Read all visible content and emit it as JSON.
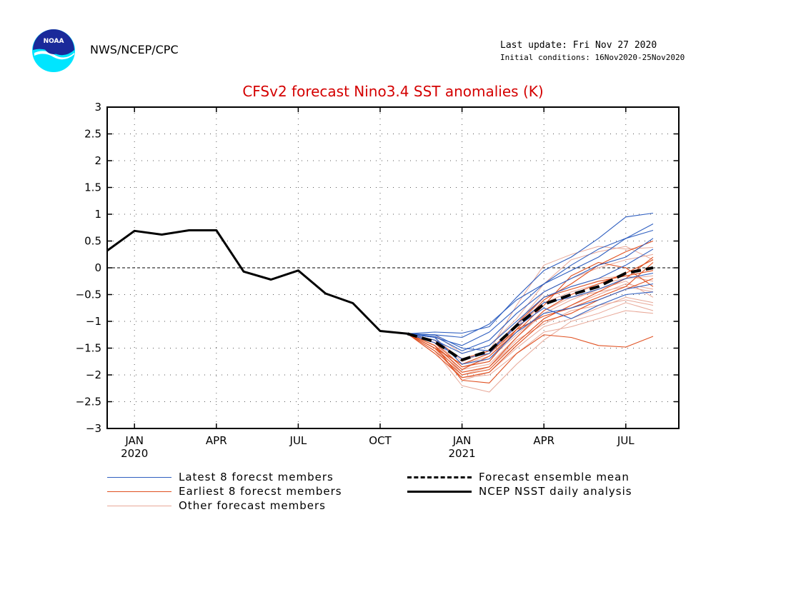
{
  "header": {
    "org": "NWS/NCEP/CPC",
    "last_update": "Last update: Fri Nov 27 2020",
    "initial_conditions": "Initial conditions: 16Nov2020-25Nov2020",
    "logo_text": "NOAA"
  },
  "colors": {
    "title": "#d40000",
    "latest": "#2f5fc0",
    "earliest": "#e05020",
    "other": "#e8a898",
    "mean": "#000000",
    "analysis": "#000000"
  },
  "chart_data": {
    "type": "line",
    "title": "CFSv2 forecast Nino3.4 SST anomalies (K)",
    "xlabel": "",
    "ylabel": "",
    "ylim": [
      -3,
      3
    ],
    "yticks": [
      3,
      2.5,
      2,
      1.5,
      1,
      0.5,
      0,
      -0.5,
      -1,
      -1.5,
      -2,
      -2.5,
      -3
    ],
    "ytick_labels": [
      "3",
      "2.5",
      "2",
      "1.5",
      "1",
      "0.5",
      "0",
      "−0.5",
      "−1",
      "−1.5",
      "−2",
      "−2.5",
      "−3"
    ],
    "x_domain": [
      "2019-12",
      "2021-08"
    ],
    "x_months": [
      "2019-12",
      "2020-01",
      "2020-02",
      "2020-03",
      "2020-04",
      "2020-05",
      "2020-06",
      "2020-07",
      "2020-08",
      "2020-09",
      "2020-10",
      "2020-11",
      "2020-12",
      "2021-01",
      "2021-02",
      "2021-03",
      "2021-04",
      "2021-05",
      "2021-06",
      "2021-07",
      "2021-08"
    ],
    "xticks": [
      {
        "month": "2020-01",
        "label": "JAN",
        "year": "2020"
      },
      {
        "month": "2020-04",
        "label": "APR",
        "year": ""
      },
      {
        "month": "2020-07",
        "label": "JUL",
        "year": ""
      },
      {
        "month": "2020-10",
        "label": "OCT",
        "year": ""
      },
      {
        "month": "2021-01",
        "label": "JAN",
        "year": "2021"
      },
      {
        "month": "2021-04",
        "label": "APR",
        "year": ""
      },
      {
        "month": "2021-07",
        "label": "JUL",
        "year": ""
      }
    ],
    "grid": true,
    "zero_line": true,
    "legend": [
      {
        "label": "Latest 8 forecst members",
        "style": "thin-blue"
      },
      {
        "label": "Earliest 8 forecst members",
        "style": "thin-orange"
      },
      {
        "label": "Other forecast members",
        "style": "thin-pink"
      },
      {
        "label": "Forecast ensemble mean",
        "style": "thick-dashed-black"
      },
      {
        "label": "NCEP NSST daily analysis",
        "style": "thick-black"
      }
    ],
    "analysis": {
      "name": "NCEP NSST daily analysis",
      "x": [
        "2019-12",
        "2020-01",
        "2020-02",
        "2020-03",
        "2020-04",
        "2020-05",
        "2020-06",
        "2020-07",
        "2020-08",
        "2020-09",
        "2020-10",
        "2020-11"
      ],
      "y": [
        0.32,
        0.69,
        0.62,
        0.7,
        0.7,
        -0.07,
        -0.22,
        -0.05,
        -0.48,
        -0.66,
        -1.18,
        -1.23
      ]
    },
    "ensemble_mean": {
      "name": "Forecast ensemble mean",
      "x": [
        "2020-11",
        "2020-12",
        "2021-01",
        "2021-02",
        "2021-03",
        "2021-04",
        "2021-05",
        "2021-06",
        "2021-07",
        "2021-08"
      ],
      "y": [
        -1.23,
        -1.38,
        -1.72,
        -1.55,
        -1.08,
        -0.68,
        -0.5,
        -0.35,
        -0.1,
        0.0
      ]
    },
    "member_x": [
      "2020-11",
      "2020-12",
      "2021-01",
      "2021-02",
      "2021-03",
      "2021-04",
      "2021-05",
      "2021-06",
      "2021-07",
      "2021-08"
    ],
    "latest_members": [
      [
        -1.23,
        -1.2,
        -1.22,
        -1.1,
        -0.55,
        -0.05,
        0.2,
        0.55,
        0.95,
        1.02
      ],
      [
        -1.23,
        -1.25,
        -1.3,
        -1.05,
        -0.6,
        -0.3,
        0.05,
        0.35,
        0.55,
        0.82
      ],
      [
        -1.23,
        -1.3,
        -1.45,
        -1.2,
        -0.75,
        -0.3,
        -0.05,
        0.2,
        0.55,
        0.7
      ],
      [
        -1.23,
        -1.28,
        -1.55,
        -1.35,
        -0.85,
        -0.45,
        -0.2,
        0.05,
        0.2,
        0.55
      ],
      [
        -1.23,
        -1.35,
        -1.6,
        -1.45,
        -1.0,
        -0.55,
        -0.35,
        -0.2,
        0.05,
        0.35
      ],
      [
        -1.23,
        -1.4,
        -1.7,
        -1.6,
        -1.05,
        -0.65,
        -0.55,
        -0.4,
        -0.2,
        -0.1
      ],
      [
        -1.23,
        -1.3,
        -1.8,
        -1.7,
        -1.2,
        -0.85,
        -0.75,
        -0.6,
        -0.4,
        -0.3
      ],
      [
        -1.23,
        -1.25,
        -1.5,
        -1.55,
        -1.1,
        -0.75,
        -0.95,
        -0.7,
        -0.5,
        -0.45
      ]
    ],
    "earliest_members": [
      [
        -1.23,
        -1.45,
        -2.1,
        -2.15,
        -1.6,
        -1.25,
        -1.3,
        -1.45,
        -1.48,
        -1.28
      ],
      [
        -1.23,
        -1.55,
        -2.0,
        -1.9,
        -1.4,
        -0.95,
        -0.7,
        -0.45,
        -0.2,
        0.2
      ],
      [
        -1.23,
        -1.4,
        -1.85,
        -1.75,
        -1.15,
        -0.6,
        -0.3,
        0.05,
        0.3,
        0.5
      ],
      [
        -1.23,
        -1.5,
        -1.95,
        -1.85,
        -1.3,
        -0.8,
        -0.5,
        -0.3,
        -0.1,
        0.15
      ],
      [
        -1.23,
        -1.35,
        -1.7,
        -1.55,
        -1.05,
        -0.55,
        -0.4,
        -0.25,
        -0.15,
        -0.05
      ],
      [
        -1.23,
        -1.6,
        -2.05,
        -1.95,
        -1.45,
        -1.0,
        -0.85,
        -0.6,
        -0.4,
        -0.2
      ],
      [
        -1.23,
        -1.45,
        -1.9,
        -1.65,
        -1.2,
        -0.7,
        -0.15,
        0.1,
        0.0,
        -0.35
      ],
      [
        -1.23,
        -1.5,
        -1.8,
        -1.6,
        -1.15,
        -0.9,
        -0.75,
        -0.55,
        -0.35,
        0.1
      ]
    ],
    "other_members": [
      [
        -1.23,
        -1.55,
        -2.2,
        -2.32,
        -1.8,
        -1.35,
        -1.0,
        -0.85,
        -0.65,
        -0.8
      ],
      [
        -1.23,
        -1.5,
        -2.05,
        -2.0,
        -1.6,
        -1.2,
        -1.1,
        -0.95,
        -0.8,
        -0.85
      ],
      [
        -1.23,
        -1.4,
        -1.95,
        -1.85,
        -1.4,
        -0.95,
        -0.7,
        -0.5,
        -0.3,
        -0.4
      ],
      [
        -1.23,
        -1.35,
        -1.85,
        -1.75,
        -1.05,
        -0.45,
        -0.2,
        0.0,
        0.15,
        0.25
      ],
      [
        -1.23,
        -1.3,
        -1.75,
        -1.55,
        -0.7,
        0.05,
        0.25,
        0.4,
        0.35,
        0.38
      ],
      [
        -1.23,
        -1.45,
        -1.9,
        -1.8,
        -1.3,
        -0.85,
        -0.6,
        -0.4,
        -0.25,
        -0.55
      ],
      [
        -1.23,
        -1.5,
        -2.1,
        -1.95,
        -1.5,
        -1.1,
        -0.95,
        -0.75,
        -0.55,
        -0.65
      ],
      [
        -1.23,
        -1.25,
        -1.6,
        -1.45,
        -0.95,
        -0.3,
        0.15,
        0.3,
        0.4,
        0.15
      ],
      [
        -1.23,
        -1.4,
        -1.85,
        -1.7,
        -1.25,
        -0.8,
        -0.55,
        -0.45,
        -0.35,
        -0.45
      ],
      [
        -1.23,
        -1.35,
        -1.7,
        -1.6,
        -1.1,
        -0.55,
        -0.35,
        -0.2,
        -0.15,
        -0.25
      ],
      [
        -1.23,
        -1.45,
        -2.0,
        -1.85,
        -1.35,
        -1.05,
        -0.8,
        -0.7,
        -0.6,
        -0.7
      ],
      [
        -1.23,
        -1.3,
        -1.8,
        -1.65,
        -1.15,
        -0.65,
        -0.45,
        -0.3,
        -0.2,
        -0.15
      ]
    ]
  }
}
